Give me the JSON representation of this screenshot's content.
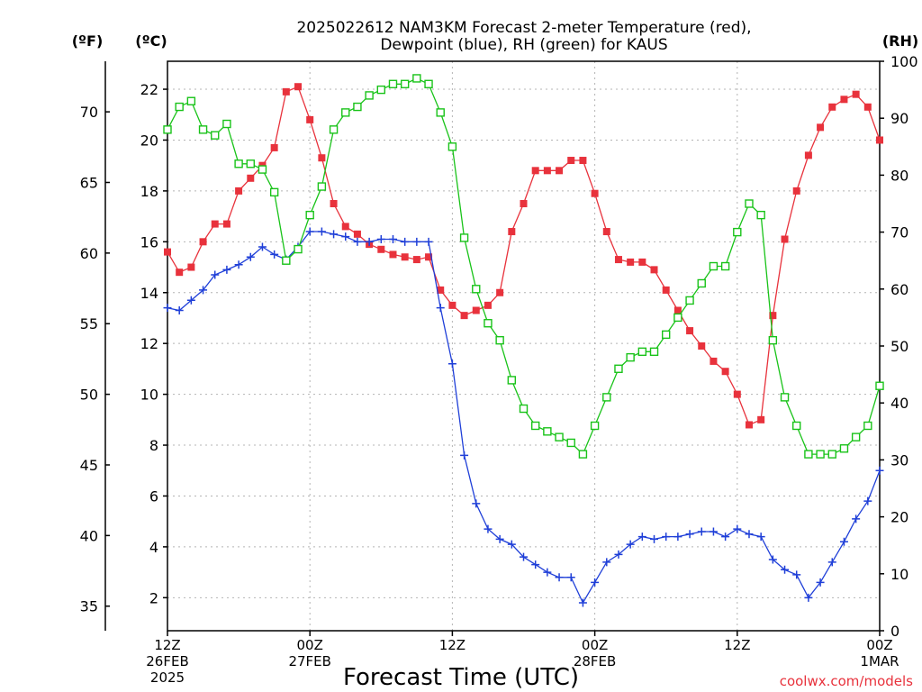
{
  "chart_data": {
    "type": "line",
    "title_line1": "2025022612 NAM3KM Forecast 2-meter Temperature (red),",
    "title_line2": "Dewpoint (blue), RH (green) for KAUS",
    "xlabel": "Forecast Time (UTC)",
    "credit": "coolwx.com/models",
    "units": {
      "fahrenheit": "(ºF)",
      "celsius": "(ºC)",
      "rh": "(RH)"
    },
    "x_hours": [
      0,
      1,
      2,
      3,
      4,
      5,
      6,
      7,
      8,
      9,
      10,
      11,
      12,
      13,
      14,
      15,
      16,
      17,
      18,
      19,
      20,
      21,
      22,
      23,
      24,
      25,
      26,
      27,
      28,
      29,
      30,
      31,
      32,
      33,
      34,
      35,
      36,
      37,
      38,
      39,
      40,
      41,
      42,
      43,
      44,
      45,
      46,
      47,
      48,
      49,
      50,
      51,
      52,
      53,
      54,
      55,
      56,
      57,
      58,
      59,
      60
    ],
    "x_range": [
      0,
      60
    ],
    "x_ticks": [
      {
        "hour": 0,
        "lines": [
          "12Z",
          "26FEB",
          "2025"
        ]
      },
      {
        "hour": 12,
        "lines": [
          "00Z",
          "27FEB"
        ]
      },
      {
        "hour": 24,
        "lines": [
          "12Z"
        ]
      },
      {
        "hour": 36,
        "lines": [
          "00Z",
          "28FEB"
        ]
      },
      {
        "hour": 48,
        "lines": [
          "12Z"
        ]
      },
      {
        "hour": 60,
        "lines": [
          "00Z",
          "1MAR"
        ]
      }
    ],
    "celsius_axis": {
      "range": [
        0.7,
        23.1
      ],
      "ticks": [
        2,
        4,
        6,
        8,
        10,
        12,
        14,
        16,
        18,
        20,
        22
      ]
    },
    "fahrenheit_axis": {
      "ticks": [
        35,
        40,
        45,
        50,
        55,
        60,
        65,
        70
      ]
    },
    "rh_axis": {
      "range": [
        0,
        100
      ],
      "ticks": [
        0,
        10,
        20,
        30,
        40,
        50,
        60,
        70,
        80,
        90,
        100
      ]
    },
    "grid": true,
    "series": [
      {
        "name": "2-meter Temperature",
        "axis": "celsius",
        "color": "#e8323c",
        "marker": "filled-square",
        "values": [
          15.6,
          14.8,
          15.0,
          16.0,
          16.7,
          16.7,
          18.0,
          18.5,
          19.0,
          19.7,
          21.9,
          22.1,
          20.8,
          19.3,
          17.5,
          16.6,
          16.3,
          15.9,
          15.7,
          15.5,
          15.4,
          15.3,
          15.4,
          14.1,
          13.5,
          13.1,
          13.3,
          13.5,
          14.0,
          16.4,
          17.5,
          18.8,
          18.8,
          18.8,
          19.2,
          19.2,
          17.9,
          16.4,
          15.3,
          15.2,
          15.2,
          14.9,
          14.1,
          13.3,
          12.5,
          11.9,
          11.3,
          10.9,
          10.0,
          8.8,
          9.0,
          13.1,
          16.1,
          18.0,
          19.4,
          20.5,
          21.3,
          21.6,
          21.8,
          21.3,
          20.0
        ]
      },
      {
        "name": "Dewpoint",
        "axis": "celsius",
        "color": "#1f3fd8",
        "marker": "plus",
        "values": [
          13.4,
          13.3,
          13.7,
          14.1,
          14.7,
          14.9,
          15.1,
          15.4,
          15.8,
          15.5,
          15.3,
          15.8,
          16.4,
          16.4,
          16.3,
          16.2,
          16.0,
          16.0,
          16.1,
          16.1,
          16.0,
          16.0,
          16.0,
          13.4,
          11.2,
          7.6,
          5.7,
          4.7,
          4.3,
          4.1,
          3.6,
          3.3,
          3.0,
          2.8,
          2.8,
          1.8,
          2.6,
          3.4,
          3.7,
          4.1,
          4.4,
          4.3,
          4.4,
          4.4,
          4.5,
          4.6,
          4.6,
          4.4,
          4.7,
          4.5,
          4.4,
          3.5,
          3.1,
          2.9,
          2.0,
          2.6,
          3.4,
          4.2,
          5.1,
          5.8,
          7.0
        ]
      },
      {
        "name": "RH",
        "axis": "rh",
        "color": "#19c319",
        "marker": "open-square",
        "values": [
          88,
          92,
          93,
          88,
          87,
          89,
          82,
          82,
          81,
          77,
          65,
          67,
          73,
          78,
          88,
          91,
          92,
          94,
          95,
          96,
          96,
          97,
          96,
          91,
          85,
          69,
          60,
          54,
          51,
          44,
          39,
          36,
          35,
          34,
          33,
          31,
          36,
          41,
          46,
          48,
          49,
          49,
          52,
          55,
          58,
          61,
          64,
          64,
          70,
          75,
          73,
          51,
          41,
          36,
          31,
          31,
          31,
          32,
          34,
          36,
          43
        ]
      }
    ]
  }
}
